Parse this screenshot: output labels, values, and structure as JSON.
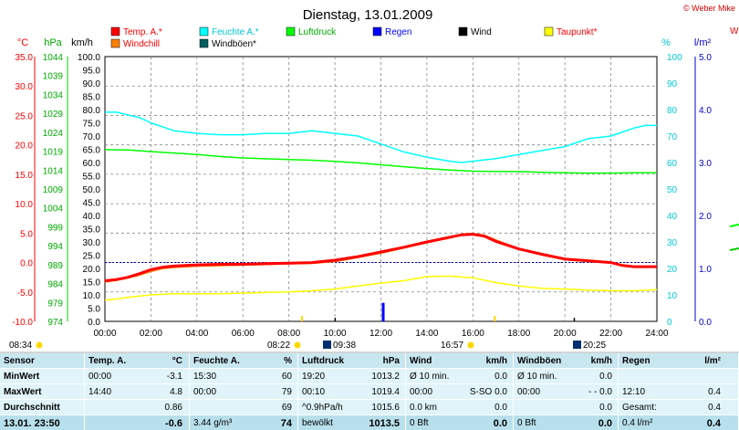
{
  "title": "Dienstag, 13.01.2009",
  "copyright": "© Weber Mike",
  "copyright_cut": "W",
  "legend": [
    {
      "label": "Temp. A.*",
      "color": "#ff0000",
      "text_color": "#ff0000"
    },
    {
      "label": "Feuchte A.*",
      "color": "#00ffff",
      "text_color": "#00c8d8"
    },
    {
      "label": "Luftdruck",
      "color": "#00ff00",
      "text_color": "#00aa00"
    },
    {
      "label": "Regen",
      "color": "#0000ff",
      "text_color": "#0000ff"
    },
    {
      "label": "Wind",
      "color": "#000000",
      "text_color": "#000000"
    },
    {
      "label": "Taupunkt*",
      "color": "#ffff00",
      "text_color": "#ff0000"
    },
    {
      "label": "Windchill",
      "color": "#ff8000",
      "text_color": "#ff0000"
    },
    {
      "label": "Windböen*",
      "color": "#006060",
      "text_color": "#000000"
    }
  ],
  "sun": {
    "rise": "08:34",
    "set": "16:57",
    "moon_rise": "09:38",
    "moon_set": "20:25",
    "marker_left": "08:22"
  },
  "chart_data": {
    "type": "line",
    "x_ticks": [
      "00:00",
      "02:00",
      "04:00",
      "06:00",
      "08:00",
      "10:00",
      "12:00",
      "14:00",
      "16:00",
      "18:00",
      "20:00",
      "22:00",
      "24:00"
    ],
    "axes": {
      "temp": {
        "label": "°C",
        "range": [
          -10,
          35
        ],
        "ticks": [
          "35.0",
          "30.0",
          "25.0",
          "20.0",
          "15.0",
          "10.0",
          "5.0",
          "0.0",
          "-5.0",
          "-10.0"
        ]
      },
      "pressure": {
        "label": "hPa",
        "range": [
          974,
          1044
        ],
        "ticks": [
          "1044",
          "1039",
          "1034",
          "1029",
          "1024",
          "1019",
          "1014",
          "1009",
          "1004",
          "999",
          "994",
          "989",
          "984",
          "979",
          "974"
        ]
      },
      "wind": {
        "label": "km/h",
        "range": [
          0,
          100
        ],
        "ticks": [
          "100.0",
          "95.0",
          "90.0",
          "85.0",
          "80.0",
          "75.0",
          "70.0",
          "65.0",
          "60.0",
          "55.0",
          "50.0",
          "45.0",
          "40.0",
          "35.0",
          "30.0",
          "25.0",
          "20.0",
          "15.0",
          "10.0",
          "5.0",
          "0.0"
        ]
      },
      "humidity": {
        "label": "%",
        "range": [
          0,
          100
        ],
        "ticks": [
          "100",
          "90",
          "80",
          "70",
          "60",
          "50",
          "40",
          "30",
          "20",
          "10",
          "0"
        ]
      },
      "rain": {
        "label": "l/m²",
        "range": [
          0,
          5
        ],
        "ticks": [
          "5.0",
          "4.0",
          "3.0",
          "2.0",
          "1.0",
          "0.0"
        ]
      }
    },
    "series": [
      {
        "name": "Feuchte A.*",
        "axis": "humidity",
        "color": "#00ffff",
        "x": [
          0,
          0.5,
          1,
          1.5,
          2,
          3,
          4,
          5,
          6,
          7,
          8,
          9,
          10,
          11,
          12,
          13,
          14,
          15,
          15.5,
          16,
          16.5,
          17,
          18,
          19,
          20,
          21,
          22,
          23,
          23.5,
          24
        ],
        "y": [
          79,
          79,
          78,
          77,
          75,
          72,
          71,
          70.5,
          70.5,
          71,
          71,
          72,
          71,
          70,
          67,
          64,
          62,
          60.5,
          60,
          60.5,
          61,
          61.5,
          63,
          64.5,
          66,
          69,
          70,
          73,
          74,
          74
        ]
      },
      {
        "name": "Luftdruck",
        "axis": "pressure",
        "color": "#00ff00",
        "x": [
          0,
          1,
          2,
          3,
          4,
          5,
          6,
          7,
          8,
          9,
          10,
          11,
          12,
          13,
          14,
          15,
          16,
          17,
          18,
          19,
          20,
          21,
          22,
          23,
          24
        ],
        "y": [
          1019.4,
          1019.3,
          1018.9,
          1018.5,
          1018.1,
          1017.6,
          1017.2,
          1017.0,
          1016.8,
          1016.6,
          1016.3,
          1015.9,
          1015.4,
          1014.9,
          1014.4,
          1014.0,
          1013.7,
          1013.6,
          1013.6,
          1013.4,
          1013.3,
          1013.2,
          1013.2,
          1013.3,
          1013.3
        ]
      },
      {
        "name": "Taupunkt*",
        "axis": "temp",
        "color": "#ffff00",
        "x": [
          0,
          0.5,
          1,
          2,
          3,
          4,
          5,
          6,
          7,
          8,
          9,
          10,
          11,
          12,
          13,
          14,
          15,
          16,
          17,
          18,
          19,
          20,
          21,
          22,
          23,
          24
        ],
        "y": [
          -6.4,
          -6.2,
          -5.9,
          -5.5,
          -5.3,
          -5.3,
          -5.3,
          -5.2,
          -5.1,
          -5.0,
          -4.8,
          -4.5,
          -4.0,
          -3.5,
          -3.1,
          -2.4,
          -2.3,
          -2.6,
          -3.4,
          -4.0,
          -4.4,
          -4.5,
          -4.7,
          -4.8,
          -4.8,
          -4.6
        ]
      },
      {
        "name": "Windchill",
        "axis": "temp",
        "color": "#ff8000",
        "x": [
          0,
          0.5,
          1,
          1.5,
          2,
          2.5,
          3,
          4,
          5,
          6,
          7,
          8,
          9,
          10,
          10.5,
          11,
          12,
          13,
          14,
          15,
          15.5,
          16,
          16.5,
          17,
          18,
          19,
          20,
          21,
          22,
          22.5,
          23,
          24
        ],
        "y": [
          -3.3,
          -3.0,
          -2.6,
          -2.1,
          -1.5,
          -1.0,
          -0.8,
          -0.6,
          -0.5,
          -0.4,
          -0.3,
          -0.2,
          -0.1,
          0.2,
          0.5,
          0.9,
          1.6,
          2.5,
          3.4,
          4.2,
          4.8,
          4.9,
          4.6,
          3.8,
          2.3,
          1.3,
          0.5,
          0.2,
          0.0,
          -0.5,
          -0.7,
          -0.7
        ]
      },
      {
        "name": "Temp. A.*",
        "axis": "temp",
        "color": "#ff0000",
        "x": [
          0,
          0.5,
          1,
          1.5,
          2,
          2.5,
          3,
          4,
          5,
          6,
          7,
          8,
          9,
          10,
          10.5,
          11,
          12,
          13,
          14,
          15,
          15.5,
          16,
          16.5,
          17,
          18,
          19,
          20,
          21,
          22,
          22.5,
          23,
          24
        ],
        "y": [
          -3.1,
          -2.9,
          -2.5,
          -1.9,
          -1.2,
          -0.8,
          -0.6,
          -0.4,
          -0.3,
          -0.3,
          -0.2,
          -0.1,
          0.0,
          0.4,
          0.7,
          1.0,
          1.8,
          2.6,
          3.5,
          4.3,
          4.7,
          4.8,
          4.5,
          3.6,
          2.3,
          1.4,
          0.6,
          0.3,
          0.0,
          -0.5,
          -0.7,
          -0.7
        ]
      }
    ],
    "rain_bars": [
      {
        "x": 12.1,
        "value": 0.35
      }
    ],
    "wind_marks": [
      {
        "x": 10.0,
        "value": 0.3
      },
      {
        "x": 20.4,
        "value": 0.3
      }
    ],
    "freeze_line": {
      "axis": "temp",
      "value": 0.0
    }
  },
  "table": {
    "headers": [
      "Sensor",
      "Temp. A.",
      "°C",
      "Feuchte A.",
      "%",
      "Luftdruck",
      "hPa",
      "Wind",
      "km/h",
      "Windböen",
      "km/h",
      "Regen",
      "l/m²"
    ],
    "rows": [
      [
        "MinWert",
        "00:00",
        "-3.1",
        "15:30",
        "60",
        "19:20",
        "1013.2",
        "Ø 10 min.",
        "0.0",
        "Ø 10 min.",
        "0.0",
        "",
        ""
      ],
      [
        "MaxWert",
        "14:40",
        "4.8",
        "00:00",
        "79",
        "00:10",
        "1019.4",
        "00:00",
        "S-SO 0.0",
        "00:00",
        "- - 0.0",
        "12:10",
        "0.4"
      ],
      [
        "Durchschnitt",
        "",
        "0.86",
        "",
        "69",
        "^0.9hPa/h",
        "1015.6",
        "0.0 km",
        "0.0",
        "",
        "0.0",
        "Gesamt:",
        "0.4"
      ],
      [
        "13.01. 23:50",
        "",
        "-0.6",
        "3.44 g/m³",
        "74",
        "bewölkt",
        "1013.5",
        "0 Bft",
        "0.0",
        "0 Bft",
        "0.0",
        "0.4 l/m²",
        "0.4"
      ]
    ]
  }
}
